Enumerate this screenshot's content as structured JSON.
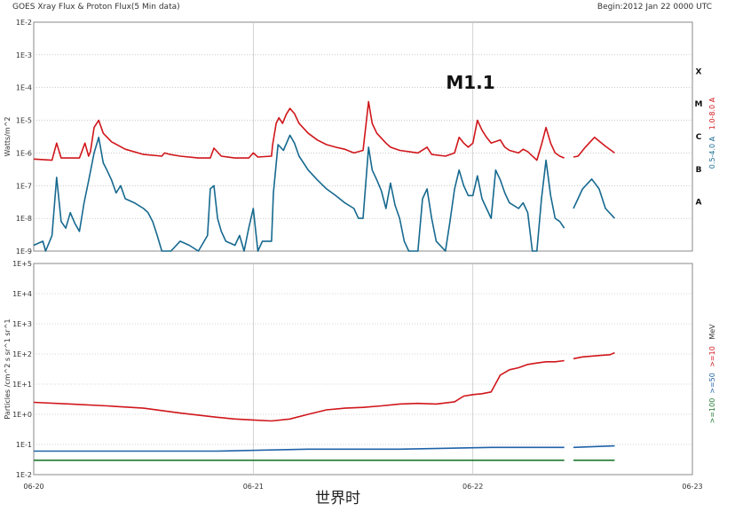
{
  "header": {
    "title": "GOES Xray Flux & Proton Flux(5 Min data)",
    "begin": "Begin:2012 Jan 22 0000 UTC"
  },
  "xaxis_label": "世界时",
  "chart_data": [
    {
      "type": "line",
      "name": "xray",
      "ylabel": "Watts/m^2",
      "yscale": "log",
      "ylim": [
        1e-09,
        0.01
      ],
      "yticks": [
        "1E-9",
        "1E-8",
        "1E-7",
        "1E-6",
        "1E-5",
        "1E-4",
        "1E-3",
        "1E-2"
      ],
      "xlim": [
        0,
        72
      ],
      "xticks": [
        "06-20",
        "06-21",
        "06-22",
        "06-23"
      ],
      "grid": true,
      "flare_class_labels": [
        "A",
        "B",
        "C",
        "M",
        "X"
      ],
      "annotations": [
        {
          "text": "M1.1",
          "x": 47,
          "y": 0.00011
        }
      ],
      "series": [
        {
          "name": "1.0-8.0 A",
          "color": "#d0161b",
          "points": [
            [
              0,
              6.5e-07
            ],
            [
              2,
              6e-07
            ],
            [
              2.5,
              2e-06
            ],
            [
              3,
              7e-07
            ],
            [
              5,
              7e-07
            ],
            [
              5.6,
              2e-06
            ],
            [
              6,
              8e-07
            ],
            [
              6.2,
              1.1e-06
            ],
            [
              6.6,
              6e-06
            ],
            [
              7.1,
              1e-05
            ],
            [
              7.6,
              4e-06
            ],
            [
              8.5,
              2.2e-06
            ],
            [
              10,
              1.3e-06
            ],
            [
              12,
              9e-07
            ],
            [
              14,
              8e-07
            ],
            [
              14.3,
              1e-06
            ],
            [
              14.9,
              9e-07
            ],
            [
              16,
              8e-07
            ],
            [
              18,
              7e-07
            ],
            [
              19.3,
              7e-07
            ],
            [
              19.7,
              1.4e-06
            ],
            [
              20.5,
              8e-07
            ],
            [
              22,
              7e-07
            ],
            [
              23.5,
              7e-07
            ],
            [
              24,
              1e-06
            ],
            [
              24.5,
              7.5e-07
            ],
            [
              26,
              8e-07
            ],
            [
              26.1,
              1.7e-06
            ],
            [
              26.5,
              8e-06
            ],
            [
              26.8,
              1.2e-05
            ],
            [
              27.2,
              8e-06
            ],
            [
              27.6,
              1.5e-05
            ],
            [
              28,
              2.3e-05
            ],
            [
              28.5,
              1.6e-05
            ],
            [
              29,
              8e-06
            ],
            [
              30,
              4e-06
            ],
            [
              31,
              2.5e-06
            ],
            [
              32,
              1.8e-06
            ],
            [
              33,
              1.5e-06
            ],
            [
              34,
              1.3e-06
            ],
            [
              35,
              1e-06
            ],
            [
              36,
              1.2e-06
            ],
            [
              36.6,
              3.7e-05
            ],
            [
              37,
              8e-06
            ],
            [
              37.5,
              4e-06
            ],
            [
              38.5,
              2e-06
            ],
            [
              39,
              1.5e-06
            ],
            [
              40,
              1.2e-06
            ],
            [
              41,
              1.1e-06
            ],
            [
              42,
              1e-06
            ],
            [
              43,
              1.5e-06
            ],
            [
              43.5,
              9e-07
            ],
            [
              45,
              8e-07
            ],
            [
              46,
              1e-06
            ],
            [
              46.5,
              3e-06
            ],
            [
              47,
              2e-06
            ],
            [
              47.5,
              1.5e-06
            ],
            [
              48,
              2e-06
            ],
            [
              48.5,
              1e-05
            ],
            [
              49,
              5e-06
            ],
            [
              49.5,
              3e-06
            ],
            [
              50,
              2e-06
            ],
            [
              51,
              2.5e-06
            ],
            [
              51.5,
              1.5e-06
            ],
            [
              52,
              1.2e-06
            ],
            [
              53,
              1e-06
            ],
            [
              53.5,
              1.3e-06
            ],
            [
              54,
              1.1e-06
            ],
            [
              55,
              6e-07
            ],
            [
              55.5,
              1.8e-06
            ],
            [
              56,
              6e-06
            ],
            [
              56.5,
              2e-06
            ],
            [
              57,
              1e-06
            ],
            [
              57.5,
              8e-07
            ],
            [
              58,
              7e-07
            ],
            [
              null,
              null
            ],
            [
              59,
              7.5e-07
            ],
            [
              59.5,
              8e-07
            ],
            [
              60.3,
              1.5e-06
            ],
            [
              61.3,
              3e-06
            ],
            [
              62.5,
              1.6e-06
            ],
            [
              63.5,
              1e-06
            ]
          ]
        },
        {
          "name": "0.5-4.0 A",
          "color": "#16698f",
          "points": [
            [
              0,
              1.5e-09
            ],
            [
              1,
              2e-09
            ],
            [
              1.3,
              1e-09
            ],
            [
              2,
              3e-09
            ],
            [
              2.5,
              1.8e-07
            ],
            [
              3,
              8e-09
            ],
            [
              3.5,
              5e-09
            ],
            [
              4,
              1.5e-08
            ],
            [
              4.5,
              7e-09
            ],
            [
              5,
              4e-09
            ],
            [
              5.5,
              3e-08
            ],
            [
              6,
              1.4e-07
            ],
            [
              6.6,
              1e-06
            ],
            [
              7.1,
              3e-06
            ],
            [
              7.6,
              5e-07
            ],
            [
              8,
              3e-07
            ],
            [
              8.5,
              1.5e-07
            ],
            [
              9,
              6e-08
            ],
            [
              9.5,
              1e-07
            ],
            [
              10,
              4e-08
            ],
            [
              11,
              3e-08
            ],
            [
              12,
              2e-08
            ],
            [
              12.5,
              1.5e-08
            ],
            [
              13,
              8e-09
            ],
            [
              13.5,
              3e-09
            ],
            [
              14,
              1e-09
            ],
            [
              15,
              1e-09
            ],
            [
              16,
              2e-09
            ],
            [
              17,
              1.5e-09
            ],
            [
              18,
              1e-09
            ],
            [
              19,
              3e-09
            ],
            [
              19.3,
              8e-08
            ],
            [
              19.7,
              1e-07
            ],
            [
              20.1,
              1e-08
            ],
            [
              20.5,
              4e-09
            ],
            [
              21,
              2e-09
            ],
            [
              22,
              1.5e-09
            ],
            [
              22.5,
              3e-09
            ],
            [
              23,
              1e-09
            ],
            [
              23.5,
              5e-09
            ],
            [
              24,
              2e-08
            ],
            [
              24.5,
              1e-09
            ],
            [
              25,
              2e-09
            ],
            [
              26,
              2e-09
            ],
            [
              26.2,
              6e-08
            ],
            [
              26.7,
              1.8e-06
            ],
            [
              27.3,
              1.2e-06
            ],
            [
              28,
              3.5e-06
            ],
            [
              28.5,
              2e-06
            ],
            [
              29,
              8e-07
            ],
            [
              30,
              3e-07
            ],
            [
              31,
              1.5e-07
            ],
            [
              32,
              8e-08
            ],
            [
              33,
              5e-08
            ],
            [
              34,
              3e-08
            ],
            [
              35,
              2e-08
            ],
            [
              35.5,
              1e-08
            ],
            [
              36,
              1e-08
            ],
            [
              36.6,
              1.5e-06
            ],
            [
              37,
              3e-07
            ],
            [
              37.5,
              1.5e-07
            ],
            [
              38,
              7e-08
            ],
            [
              38.5,
              2e-08
            ],
            [
              39,
              1.2e-07
            ],
            [
              39.5,
              2.5e-08
            ],
            [
              40,
              1e-08
            ],
            [
              40.5,
              2e-09
            ],
            [
              41,
              1e-09
            ],
            [
              42,
              1e-09
            ],
            [
              42.5,
              4e-08
            ],
            [
              43,
              8e-08
            ],
            [
              43.5,
              1e-08
            ],
            [
              44,
              2e-09
            ],
            [
              45,
              1e-09
            ],
            [
              45.5,
              8e-09
            ],
            [
              46,
              8e-08
            ],
            [
              46.5,
              3e-07
            ],
            [
              47,
              1e-07
            ],
            [
              47.5,
              5e-08
            ],
            [
              48,
              5e-08
            ],
            [
              48.5,
              2e-07
            ],
            [
              49,
              4e-08
            ],
            [
              49.5,
              2e-08
            ],
            [
              50,
              1e-08
            ],
            [
              50.5,
              3e-07
            ],
            [
              51,
              1.5e-07
            ],
            [
              51.5,
              6e-08
            ],
            [
              52,
              3e-08
            ],
            [
              53,
              2e-08
            ],
            [
              53.5,
              3e-08
            ],
            [
              54,
              1.5e-08
            ],
            [
              54.5,
              1e-09
            ],
            [
              55,
              1e-09
            ],
            [
              55.5,
              4e-08
            ],
            [
              56,
              6e-07
            ],
            [
              56.5,
              5e-08
            ],
            [
              57,
              1e-08
            ],
            [
              57.5,
              8e-09
            ],
            [
              58,
              5e-09
            ],
            [
              null,
              null
            ],
            [
              59,
              2e-08
            ],
            [
              60,
              8e-08
            ],
            [
              61,
              1.6e-07
            ],
            [
              61.8,
              8e-08
            ],
            [
              62.5,
              2e-08
            ],
            [
              63.5,
              1e-08
            ]
          ]
        }
      ]
    },
    {
      "type": "line",
      "name": "proton",
      "ylabel": "Particles /cm^2 s sr^1 sr^1",
      "yscale": "log",
      "ylim": [
        0.01,
        100000
      ],
      "yticks": [
        "1E-2",
        "1E-1",
        "1E+0",
        "1E+1",
        "1E+2",
        "1E+3",
        "1E+4",
        "1E+5"
      ],
      "xlim": [
        0,
        72
      ],
      "xticks": [
        "06-20",
        "06-21",
        "06-22",
        "06-23"
      ],
      "grid": true,
      "unit": "MeV",
      "series": [
        {
          "name": ">=10",
          "color": "#d0161b",
          "points": [
            [
              0,
              2.5
            ],
            [
              4,
              2.2
            ],
            [
              8,
              1.9
            ],
            [
              12,
              1.6
            ],
            [
              16,
              1.1
            ],
            [
              20,
              0.8
            ],
            [
              22,
              0.7
            ],
            [
              24,
              0.65
            ],
            [
              26,
              0.6
            ],
            [
              28,
              0.7
            ],
            [
              30,
              1
            ],
            [
              32,
              1.4
            ],
            [
              34,
              1.6
            ],
            [
              36,
              1.7
            ],
            [
              38,
              1.9
            ],
            [
              40,
              2.2
            ],
            [
              42,
              2.3
            ],
            [
              44,
              2.2
            ],
            [
              46,
              2.6
            ],
            [
              47,
              4
            ],
            [
              48,
              4.5
            ],
            [
              49,
              4.8
            ],
            [
              50,
              5.5
            ],
            [
              51,
              20
            ],
            [
              52,
              30
            ],
            [
              53,
              35
            ],
            [
              54,
              45
            ],
            [
              55,
              50
            ],
            [
              56,
              55
            ],
            [
              57,
              55
            ],
            [
              58,
              60
            ],
            [
              null,
              null
            ],
            [
              59,
              70
            ],
            [
              60,
              80
            ],
            [
              61,
              85
            ],
            [
              62,
              90
            ],
            [
              63,
              95
            ],
            [
              63.5,
              110
            ]
          ]
        },
        {
          "name": ">=50",
          "color": "#1f62a8",
          "points": [
            [
              0,
              0.06
            ],
            [
              10,
              0.06
            ],
            [
              20,
              0.06
            ],
            [
              30,
              0.07
            ],
            [
              40,
              0.07
            ],
            [
              50,
              0.08
            ],
            [
              58,
              0.08
            ],
            [
              null,
              null
            ],
            [
              59,
              0.08
            ],
            [
              63.5,
              0.09
            ]
          ]
        },
        {
          "name": ">=100",
          "color": "#1f7a2e",
          "points": [
            [
              0,
              0.03
            ],
            [
              10,
              0.03
            ],
            [
              20,
              0.03
            ],
            [
              30,
              0.03
            ],
            [
              40,
              0.03
            ],
            [
              50,
              0.03
            ],
            [
              58,
              0.03
            ],
            [
              null,
              null
            ],
            [
              59,
              0.03
            ],
            [
              63.5,
              0.03
            ]
          ]
        }
      ]
    }
  ]
}
